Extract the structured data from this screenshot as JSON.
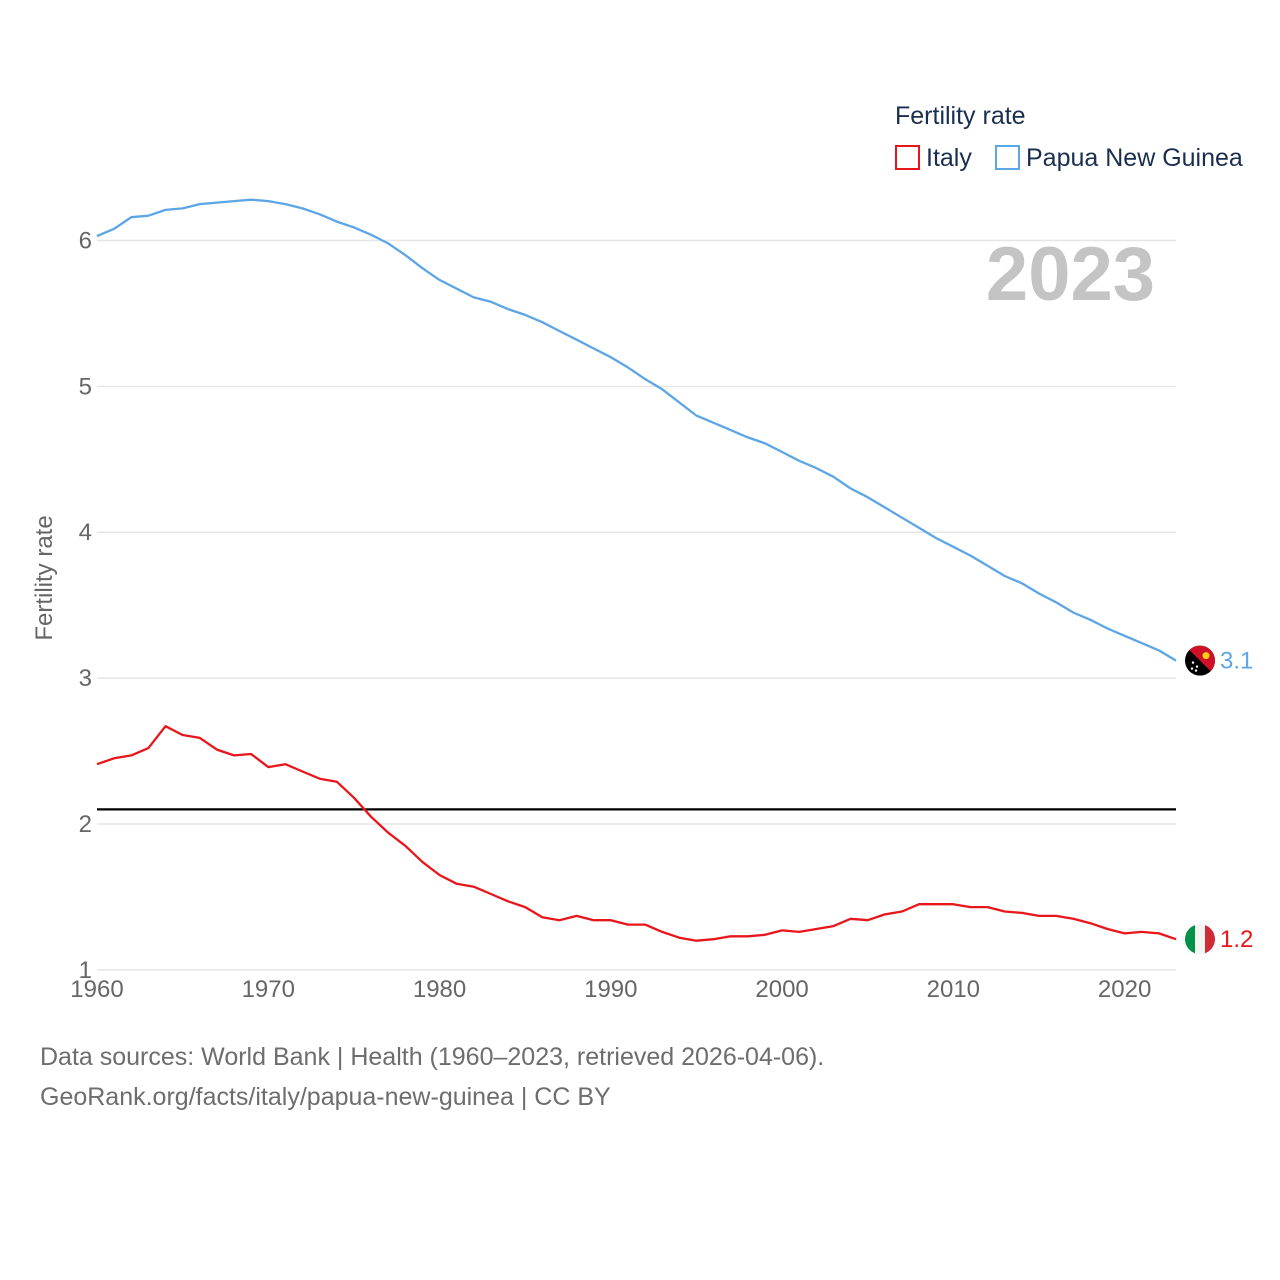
{
  "chart_data": {
    "type": "line",
    "title": "Fertility rate",
    "ylabel": "Fertility rate",
    "xlabel": "",
    "year_label": "2023",
    "xlim": [
      1960,
      2023
    ],
    "ylim": [
      0.8,
      6.6
    ],
    "x_ticks": [
      1960,
      1970,
      1980,
      1990,
      2000,
      2010,
      2020
    ],
    "y_ticks": [
      1,
      2,
      3,
      4,
      5,
      6
    ],
    "grid": true,
    "legend_position": "top-right",
    "reference_line": {
      "value": 2.1,
      "color": "#000000"
    },
    "x": [
      1960,
      1961,
      1962,
      1963,
      1964,
      1965,
      1966,
      1967,
      1968,
      1969,
      1970,
      1971,
      1972,
      1973,
      1974,
      1975,
      1976,
      1977,
      1978,
      1979,
      1980,
      1981,
      1982,
      1983,
      1984,
      1985,
      1986,
      1987,
      1988,
      1989,
      1990,
      1991,
      1992,
      1993,
      1994,
      1995,
      1996,
      1997,
      1998,
      1999,
      2000,
      2001,
      2002,
      2003,
      2004,
      2005,
      2006,
      2007,
      2008,
      2009,
      2010,
      2011,
      2012,
      2013,
      2014,
      2015,
      2016,
      2017,
      2018,
      2019,
      2020,
      2021,
      2022,
      2023
    ],
    "series": [
      {
        "name": "Italy",
        "color": "#e8161b",
        "end_label": "1.2",
        "flag": "italy-flag",
        "values": [
          2.41,
          2.45,
          2.47,
          2.52,
          2.67,
          2.61,
          2.59,
          2.51,
          2.47,
          2.48,
          2.39,
          2.41,
          2.36,
          2.31,
          2.29,
          2.18,
          2.05,
          1.94,
          1.85,
          1.74,
          1.65,
          1.59,
          1.57,
          1.52,
          1.47,
          1.43,
          1.36,
          1.34,
          1.37,
          1.34,
          1.34,
          1.31,
          1.31,
          1.26,
          1.22,
          1.2,
          1.21,
          1.23,
          1.23,
          1.24,
          1.27,
          1.26,
          1.28,
          1.3,
          1.35,
          1.34,
          1.38,
          1.4,
          1.45,
          1.45,
          1.45,
          1.43,
          1.43,
          1.4,
          1.39,
          1.37,
          1.37,
          1.35,
          1.32,
          1.28,
          1.25,
          1.26,
          1.25,
          1.21
        ]
      },
      {
        "name": "Papua New Guinea",
        "color": "#5da6e5",
        "end_label": "3.1",
        "flag": "papua-new-guinea-flag",
        "values": [
          6.03,
          6.08,
          6.16,
          6.17,
          6.21,
          6.22,
          6.25,
          6.26,
          6.27,
          6.28,
          6.27,
          6.25,
          6.22,
          6.18,
          6.13,
          6.09,
          6.04,
          5.98,
          5.9,
          5.81,
          5.73,
          5.67,
          5.61,
          5.58,
          5.53,
          5.49,
          5.44,
          5.38,
          5.32,
          5.26,
          5.2,
          5.13,
          5.05,
          4.98,
          4.89,
          4.8,
          4.75,
          4.7,
          4.65,
          4.61,
          4.55,
          4.49,
          4.44,
          4.38,
          4.3,
          4.24,
          4.17,
          4.1,
          4.03,
          3.96,
          3.9,
          3.84,
          3.77,
          3.7,
          3.65,
          3.58,
          3.52,
          3.45,
          3.4,
          3.34,
          3.29,
          3.24,
          3.19,
          3.12
        ]
      }
    ]
  },
  "footer": {
    "line1": "Data sources: World Bank | Health (1960–2023, retrieved 2026-04-06).",
    "line2": "GeoRank.org/facts/italy/papua-new-guinea | CC BY"
  }
}
